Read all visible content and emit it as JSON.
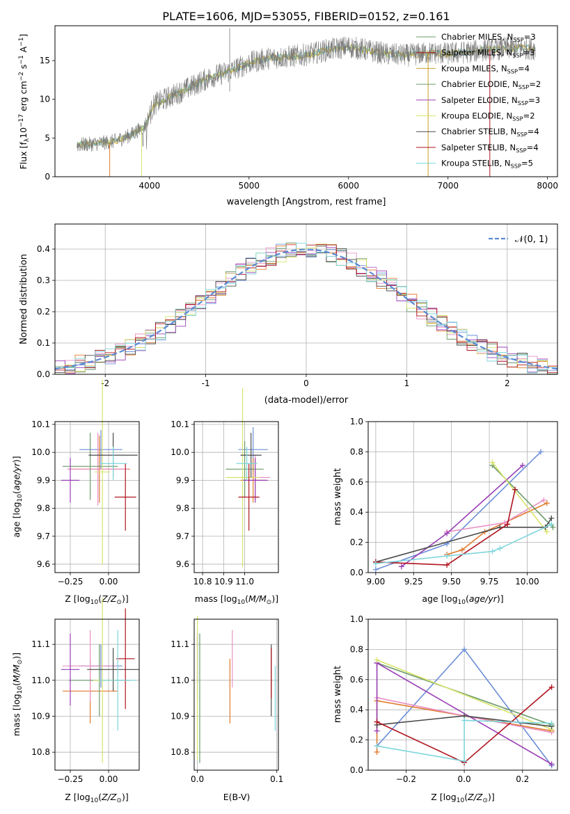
{
  "title": "PLATE=1606, MJD=53055, FIBERID=0152, z=0.161",
  "colors": [
    "#6c8ed8",
    "#e07a2c",
    "#e990c4",
    "#6a9a6a",
    "#9a3fb5",
    "#d8e46a",
    "#4a4a4a",
    "#b0141e",
    "#7ed6dc"
  ],
  "chart_data": [
    {
      "id": "spectrum",
      "type": "line",
      "xlabel": "wavelength [Angstrom, rest frame]",
      "ylabel": "Flux [f$_\\lambda$10$^{-17}$ erg cm$^{-2}$ s$^{-1}$ A$^{-1}$]",
      "ylabel_text": "Flux [fλ10",
      "xlim": [
        3050,
        8100
      ],
      "ylim": [
        0,
        19.5
      ],
      "xticks": [
        4000,
        5000,
        6000,
        7000,
        8000
      ],
      "yticks": [
        0,
        5,
        10,
        15
      ],
      "grid": false,
      "legend_position": "upper-right",
      "legend": [
        {
          "base": "Chabrier MILES, N",
          "sub": "SSP",
          "tail": "=3"
        },
        {
          "base": "Salpeter MILES, N",
          "sub": "SSP",
          "tail": "=3"
        },
        {
          "base": "Kroupa MILES, N",
          "sub": "SSP",
          "tail": "=4"
        },
        {
          "base": "Chabrier ELODIE, N",
          "sub": "SSP",
          "tail": "=2"
        },
        {
          "base": "Salpeter ELODIE, N",
          "sub": "SSP",
          "tail": "=3"
        },
        {
          "base": "Kroupa ELODIE, N",
          "sub": "SSP",
          "tail": "=2"
        },
        {
          "base": "Chabrier STELIB, N",
          "sub": "SSP",
          "tail": "=4"
        },
        {
          "base": "Salpeter STELIB, N",
          "sub": "SSP",
          "tail": "=4"
        },
        {
          "base": "Kroupa STELIB, N",
          "sub": "SSP",
          "tail": "=5"
        }
      ],
      "legend_colors": [
        "#6a9a6a",
        "#b0141e",
        "#c8a028",
        "#6a9a6a",
        "#9a3fb5",
        "#d8e46a",
        "#4a4a4a",
        "#b0141e",
        "#7ed6dc"
      ],
      "data_outline": {
        "wavelength": [
          3270,
          3400,
          3550,
          3650,
          3800,
          3950,
          4050,
          4200,
          4400,
          4600,
          4800,
          5000,
          5200,
          5400,
          5600,
          5800,
          6000,
          6200,
          6400,
          6600,
          6800,
          7000,
          7200,
          7400,
          7600,
          7800,
          7880
        ],
        "flux": [
          4.1,
          4.2,
          4.4,
          4.6,
          5.3,
          6.5,
          9.4,
          10.3,
          11.5,
          12.8,
          13.6,
          14.7,
          15.3,
          15.5,
          15.8,
          16.4,
          16.8,
          16.3,
          15.8,
          15.7,
          16.0,
          15.9,
          16.1,
          16.4,
          16.6,
          16.6,
          16.5
        ]
      }
    },
    {
      "id": "residual-histogram",
      "type": "line",
      "xlabel": "(data-model)/error",
      "ylabel": "Normed distribution",
      "xlim": [
        -2.5,
        2.5
      ],
      "ylim": [
        0,
        0.48
      ],
      "xticks": [
        -2,
        -1,
        0,
        1,
        2
      ],
      "yticks": [
        0.0,
        0.1,
        0.2,
        0.3,
        0.4
      ],
      "grid": true,
      "legend_position": "upper-right",
      "legend": [
        {
          "label": "𝒩(0, 1)",
          "style": "dashed",
          "color": "#5b8ad6"
        }
      ],
      "gaussian": {
        "mean": 0,
        "sigma": 1
      }
    },
    {
      "id": "age-vs-Z",
      "type": "scatter",
      "xlabel": "Z [log10(Z/Z⊙)]",
      "ylabel": "age  [log10(age/yr)]",
      "xlim": [
        -0.35,
        0.2
      ],
      "ylim": [
        9.57,
        10.11
      ],
      "xticks": [
        -0.25,
        0.0
      ],
      "xticklabels": [
        "−0.25",
        "0.00"
      ],
      "yticks": [
        9.6,
        9.7,
        9.8,
        9.9,
        10.0,
        10.1
      ],
      "grid": true,
      "errorbars": [
        {
          "x": -0.05,
          "y": 10.01,
          "xerr": 0.14,
          "yerr": 0.07
        },
        {
          "x": -0.06,
          "y": 9.94,
          "xerr": 0.2,
          "yerr": 0.12
        },
        {
          "x": -0.07,
          "y": 9.94,
          "xerr": 0.2,
          "yerr": 0.13
        },
        {
          "x": -0.12,
          "y": 9.95,
          "xerr": 0.18,
          "yerr": 0.12
        },
        {
          "x": -0.25,
          "y": 9.9,
          "xerr": 0.06,
          "yerr": 0.08
        },
        {
          "x": -0.04,
          "y": 9.93,
          "xerr": 0.05,
          "yerr": 0.33
        },
        {
          "x": 0.03,
          "y": 9.99,
          "xerr": 0.16,
          "yerr": 0.08
        },
        {
          "x": 0.11,
          "y": 9.84,
          "xerr": 0.07,
          "yerr": 0.12
        },
        {
          "x": 0.03,
          "y": 9.96,
          "xerr": 0.09,
          "yerr": 0.06
        }
      ]
    },
    {
      "id": "age-vs-mass",
      "type": "scatter",
      "xlabel": "mass [log10(M/M⊙)]",
      "ylabel": "",
      "xlim": [
        10.76,
        11.16
      ],
      "ylim": [
        9.57,
        10.11
      ],
      "xticks": [
        10.8,
        10.9,
        11.0
      ],
      "xticklabels": [
        "10.8",
        "10.9",
        "11.0"
      ],
      "yticks": [
        9.6,
        9.7,
        9.8,
        9.9,
        10.0,
        10.1
      ],
      "grid": true,
      "errorbars": [
        {
          "x": 11.04,
          "y": 10.01,
          "xerr": 0.07,
          "yerr": 0.08
        },
        {
          "x": 11.04,
          "y": 9.9,
          "xerr": 0.06,
          "yerr": 0.08
        },
        {
          "x": 11.05,
          "y": 9.91,
          "xerr": 0.07,
          "yerr": 0.08
        },
        {
          "x": 11.0,
          "y": 9.94,
          "xerr": 0.09,
          "yerr": 0.1
        },
        {
          "x": 11.05,
          "y": 9.9,
          "xerr": 0.06,
          "yerr": 0.08
        },
        {
          "x": 10.99,
          "y": 9.91,
          "xerr": 0.08,
          "yerr": 0.32
        },
        {
          "x": 11.03,
          "y": 9.99,
          "xerr": 0.05,
          "yerr": 0.08
        },
        {
          "x": 11.02,
          "y": 9.84,
          "xerr": 0.05,
          "yerr": 0.12
        },
        {
          "x": 11.01,
          "y": 9.96,
          "xerr": 0.05,
          "yerr": 0.06
        }
      ]
    },
    {
      "id": "massweight-vs-age",
      "type": "line",
      "xlabel": "age  [log10(age/yr)]",
      "ylabel": "mass weight",
      "xlim": [
        8.95,
        10.2
      ],
      "ylim": [
        0,
        1.0
      ],
      "xticks": [
        9.0,
        9.25,
        9.5,
        9.75,
        10.0
      ],
      "xticklabels": [
        "9.00",
        "9.25",
        "9.50",
        "9.75",
        "10.00"
      ],
      "yticks": [
        0.0,
        0.2,
        0.4,
        0.6,
        0.8,
        1.0
      ],
      "grid": true,
      "series": [
        {
          "x": [
            9.0,
            9.47,
            10.09
          ],
          "y": [
            0.02,
            0.19,
            0.8
          ]
        },
        {
          "x": [
            9.47,
            9.57,
            9.72,
            10.13
          ],
          "y": [
            0.12,
            0.15,
            0.27,
            0.46
          ]
        },
        {
          "x": [
            9.47,
            9.85,
            10.11
          ],
          "y": [
            0.27,
            0.33,
            0.48
          ]
        },
        {
          "x": [
            9.77,
            10.17
          ],
          "y": [
            0.71,
            0.3
          ]
        },
        {
          "x": [
            9.17,
            9.47,
            9.97
          ],
          "y": [
            0.04,
            0.26,
            0.71
          ]
        },
        {
          "x": [
            9.77,
            10.13
          ],
          "y": [
            0.73,
            0.27
          ]
        },
        {
          "x": [
            9.0,
            9.82,
            10.12,
            10.16
          ],
          "y": [
            0.07,
            0.3,
            0.3,
            0.36
          ]
        },
        {
          "x": [
            9.0,
            9.47,
            9.87,
            9.92
          ],
          "y": [
            0.07,
            0.05,
            0.32,
            0.55
          ]
        },
        {
          "x": [
            9.0,
            9.47,
            9.77,
            9.82,
            10.16
          ],
          "y": [
            0.06,
            0.11,
            0.14,
            0.16,
            0.32
          ]
        }
      ]
    },
    {
      "id": "mass-vs-Z",
      "type": "scatter",
      "xlabel": "Z [log10(Z/Z⊙)]",
      "ylabel": "mass [log10(M/M⊙)]",
      "xlim": [
        -0.35,
        0.2
      ],
      "ylim": [
        10.75,
        11.17
      ],
      "xticks": [
        -0.25,
        0.0
      ],
      "xticklabels": [
        "−0.25",
        "0.00"
      ],
      "yticks": [
        10.8,
        10.9,
        11.0,
        11.1
      ],
      "grid": true,
      "errorbars": [
        {
          "x": -0.05,
          "y": 11.04,
          "xerr": 0.14,
          "yerr": 0.06
        },
        {
          "x": -0.12,
          "y": 10.97,
          "xerr": 0.18,
          "yerr": 0.09
        },
        {
          "x": -0.12,
          "y": 11.04,
          "xerr": 0.18,
          "yerr": 0.1
        },
        {
          "x": -0.06,
          "y": 11.0,
          "xerr": 0.2,
          "yerr": 0.1
        },
        {
          "x": -0.25,
          "y": 11.03,
          "xerr": 0.06,
          "yerr": 0.1
        },
        {
          "x": -0.04,
          "y": 11.0,
          "xerr": 0.06,
          "yerr": 0.23
        },
        {
          "x": 0.03,
          "y": 11.03,
          "xerr": 0.17,
          "yerr": 0.06
        },
        {
          "x": 0.11,
          "y": 11.06,
          "xerr": 0.06,
          "yerr": 0.14
        },
        {
          "x": 0.06,
          "y": 11.0,
          "xerr": 0.12,
          "yerr": 0.14
        }
      ]
    },
    {
      "id": "mass-vs-EBV",
      "type": "scatter",
      "xlabel": "E(B-V)",
      "ylabel": "",
      "xlim": [
        -0.004,
        0.102
      ],
      "ylim": [
        10.75,
        11.17
      ],
      "xticks": [
        0.0,
        0.1
      ],
      "xticklabels": [
        "0.0",
        "0.1"
      ],
      "yticks": [
        10.8,
        10.9,
        11.0,
        11.1
      ],
      "grid": true,
      "errorbars": [
        {
          "x": 0.0,
          "y": 11.04,
          "yerr": 0.1
        },
        {
          "x": 0.041,
          "y": 10.97,
          "yerr": 0.09
        },
        {
          "x": 0.044,
          "y": 11.06,
          "yerr": 0.08
        },
        {
          "x": 0.003,
          "y": 10.95,
          "yerr": 0.18
        },
        {
          "x": 0.0,
          "y": 11.06,
          "yerr": 0.07
        },
        {
          "x": 0.0,
          "y": 10.98,
          "yerr": 0.2
        },
        {
          "x": 0.093,
          "y": 11.0,
          "yerr": 0.1
        },
        {
          "x": 0.093,
          "y": 11.02,
          "yerr": 0.07
        },
        {
          "x": 0.098,
          "y": 10.95,
          "yerr": 0.09
        }
      ]
    },
    {
      "id": "massweight-vs-Z",
      "type": "line",
      "xlabel": "Z [log10(Z/Z⊙)]",
      "ylabel": "mass weight",
      "xlim": [
        -0.33,
        0.32
      ],
      "ylim": [
        0,
        1.0
      ],
      "xticks": [
        -0.2,
        0.0,
        0.2
      ],
      "xticklabels": [
        "−0.2",
        "0.0",
        "0.2"
      ],
      "yticks": [
        0.0,
        0.2,
        0.4,
        0.6,
        0.8,
        1.0
      ],
      "grid": true,
      "series": [
        {
          "x": [
            -0.3,
            0.0,
            0.3
          ],
          "y": [
            0.16,
            0.8,
            0.03
          ]
        },
        {
          "x": [
            -0.3,
            -0.3,
            0.0,
            0.3
          ],
          "y": [
            0.12,
            0.46,
            0.36,
            0.26
          ]
        },
        {
          "x": [
            -0.3,
            0.0,
            0.3
          ],
          "y": [
            0.48,
            0.36,
            0.25
          ]
        },
        {
          "x": [
            -0.3,
            0.3
          ],
          "y": [
            0.71,
            0.3
          ]
        },
        {
          "x": [
            -0.3,
            -0.3,
            0.3
          ],
          "y": [
            0.26,
            0.71,
            0.04
          ]
        },
        {
          "x": [
            -0.3,
            0.3
          ],
          "y": [
            0.73,
            0.27
          ]
        },
        {
          "x": [
            -0.3,
            0.0,
            0.3
          ],
          "y": [
            0.3,
            0.36,
            0.29
          ]
        },
        {
          "x": [
            -0.3,
            0.0,
            0.3
          ],
          "y": [
            0.32,
            0.05,
            0.55
          ]
        },
        {
          "x": [
            -0.3,
            0.0,
            0.0,
            0.3
          ],
          "y": [
            0.16,
            0.06,
            0.33,
            0.31
          ]
        }
      ]
    }
  ]
}
